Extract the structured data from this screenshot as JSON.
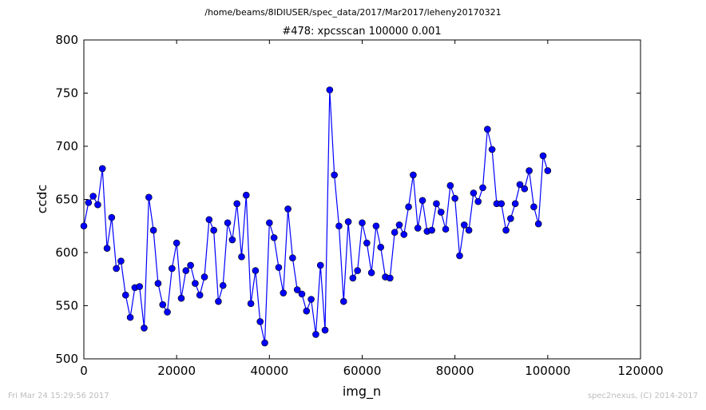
{
  "page": {
    "super_title": "/home/beams/8IDIUSER/spec_data/2017/Mar2017/leheny20170321",
    "footer_left": "Fri Mar 24 15:29:56 2017",
    "footer_right": "spec2nexus, (C) 2014-2017"
  },
  "chart_data": {
    "type": "line",
    "title": "#478: xpcsscan 100000 0.001",
    "xlabel": "img_n",
    "ylabel": "ccdc",
    "xlim": [
      0,
      120000
    ],
    "ylim": [
      500,
      800
    ],
    "xticks": [
      0,
      20000,
      40000,
      60000,
      80000,
      100000,
      120000
    ],
    "yticks": [
      500,
      550,
      600,
      650,
      700,
      750,
      800
    ],
    "grid": false,
    "legend": "none",
    "series": [
      {
        "color": "#0000ff",
        "x": [
          0,
          1000,
          2000,
          3000,
          4000,
          5000,
          6000,
          7000,
          8000,
          9000,
          10000,
          11000,
          12000,
          13000,
          14000,
          15000,
          16000,
          17000,
          18000,
          19000,
          20000,
          21000,
          22000,
          23000,
          24000,
          25000,
          26000,
          27000,
          28000,
          29000,
          30000,
          31000,
          32000,
          33000,
          34000,
          35000,
          36000,
          37000,
          38000,
          39000,
          40000,
          41000,
          42000,
          43000,
          44000,
          45000,
          46000,
          47000,
          48000,
          49000,
          50000,
          51000,
          52000,
          53000,
          54000,
          55000,
          56000,
          57000,
          58000,
          59000,
          60000,
          61000,
          62000,
          63000,
          64000,
          65000,
          66000,
          67000,
          68000,
          69000,
          70000,
          71000,
          72000,
          73000,
          74000,
          75000,
          76000,
          77000,
          78000,
          79000,
          80000,
          81000,
          82000,
          83000,
          84000,
          85000,
          86000,
          87000,
          88000,
          89000,
          90000,
          91000,
          92000,
          93000,
          94000,
          95000,
          96000,
          97000,
          98000,
          99000,
          100000
        ],
        "y": [
          625,
          647,
          653,
          645,
          679,
          604,
          633,
          585,
          592,
          560,
          539,
          567,
          568,
          529,
          652,
          621,
          571,
          551,
          544,
          585,
          609,
          557,
          583,
          588,
          571,
          560,
          577,
          631,
          621,
          554,
          569,
          628,
          612,
          646,
          596,
          654,
          552,
          583,
          535,
          515,
          628,
          614,
          586,
          562,
          641,
          595,
          565,
          561,
          545,
          556,
          523,
          588,
          527,
          753,
          673,
          625,
          554,
          629,
          576,
          583,
          628,
          609,
          581,
          625,
          605,
          577,
          576,
          619,
          626,
          617,
          643,
          673,
          623,
          649,
          620,
          621,
          646,
          638,
          622,
          663,
          651,
          597,
          626,
          621,
          656,
          648,
          661,
          716,
          697,
          646,
          646,
          621,
          632,
          646,
          664,
          660,
          677,
          643,
          627,
          691,
          677
        ]
      }
    ]
  }
}
